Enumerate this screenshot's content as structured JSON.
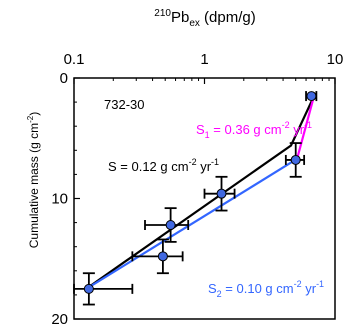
{
  "chart_data": {
    "type": "scatter",
    "x_axis": {
      "label_sup": "210",
      "label_main": "Pb",
      "label_sub": "ex",
      "label_units": " (dpm/g)",
      "scale": "log",
      "range": [
        0.1,
        10
      ],
      "ticks": [
        0.1,
        1,
        10
      ],
      "tick_labels": [
        "0.1",
        "1",
        "10"
      ],
      "position": "top"
    },
    "y_axis": {
      "label": "Cumulative mass (g cm",
      "label_sup": "-2",
      "label_close": ")",
      "range": [
        0,
        20
      ],
      "inverted": true,
      "ticks": [
        0,
        10,
        20
      ],
      "tick_labels": [
        "0",
        "10",
        "20"
      ]
    },
    "core_label": "732-30",
    "points": [
      {
        "x": 6.6,
        "y": 1.5,
        "xerr": [
          0.6,
          0.6
        ],
        "yerr": 0
      },
      {
        "x": 5.0,
        "y": 6.8,
        "xerr": [
          0.8,
          0.8
        ],
        "yerr": 1.4
      },
      {
        "x": 1.35,
        "y": 9.6,
        "xerr": [
          0.35,
          0.35
        ],
        "yerr": 1.4
      },
      {
        "x": 0.55,
        "y": 12.2,
        "xerr": [
          0.2,
          0.2
        ],
        "yerr": 1.4
      },
      {
        "x": 0.48,
        "y": 14.8,
        "xerr": [
          0.2,
          0.2
        ],
        "yerr": 1.4
      },
      {
        "x": 0.13,
        "y": 17.5,
        "xerr": [
          0.03,
          0.15
        ],
        "yerr": 1.3
      }
    ],
    "fits": [
      {
        "name_main": "S",
        "name_sub": "1",
        "value_text": " = 0.36 g cm",
        "unit_sup1": "-2",
        "unit_mid": " yr",
        "unit_sup2": "-1",
        "color": "#ff00ff",
        "from": {
          "x": 6.9,
          "y": 1.5
        },
        "to": {
          "x": 5.1,
          "y": 6.8
        }
      },
      {
        "name_main": "S",
        "name_sub": "",
        "value_text": " = 0.12 g cm",
        "unit_sup1": "-2",
        "unit_mid": " yr",
        "unit_sup2": "-1",
        "color": "#000000",
        "from": {
          "x": 0.12,
          "y": 17.6
        },
        "to": {
          "x": 4.6,
          "y": 5.6
        },
        "tail": {
          "x": 6.9,
          "y": 1.5
        }
      },
      {
        "name_main": "S",
        "name_sub": "2",
        "value_text": " = 0.10 g cm",
        "unit_sup1": "-2",
        "unit_mid": " yr",
        "unit_sup2": "-1",
        "color": "#3366ff",
        "from": {
          "x": 0.12,
          "y": 17.6
        },
        "to": {
          "x": 4.8,
          "y": 6.9
        }
      }
    ],
    "marker_color": "#4169e1",
    "grid": false
  }
}
